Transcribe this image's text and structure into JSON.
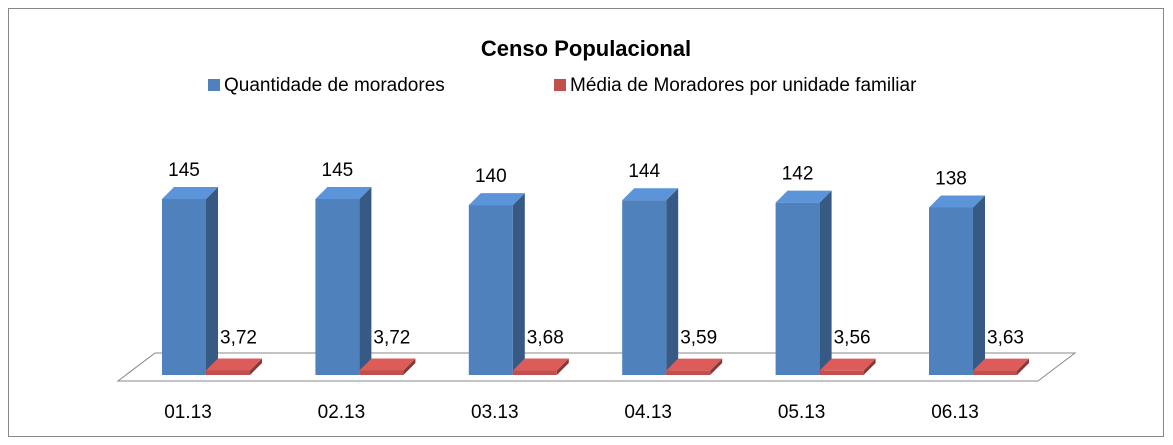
{
  "chart_data": {
    "type": "bar3d",
    "title": "Censo Populacional",
    "categories": [
      "01.13",
      "02.13",
      "03.13",
      "04.13",
      "05.13",
      "06.13"
    ],
    "series": [
      {
        "name": "Quantidade de moradores",
        "color": "#4f81bd",
        "values": [
          145,
          145,
          140,
          144,
          142,
          138
        ]
      },
      {
        "name": "Média de Moradores por unidade familiar",
        "color": "#c0504d",
        "values": [
          3.72,
          3.72,
          3.68,
          3.59,
          3.56,
          3.63
        ],
        "value_labels": [
          "3,72",
          "3,72",
          "3,68",
          "3,59",
          "3,56",
          "3,63"
        ]
      }
    ]
  }
}
